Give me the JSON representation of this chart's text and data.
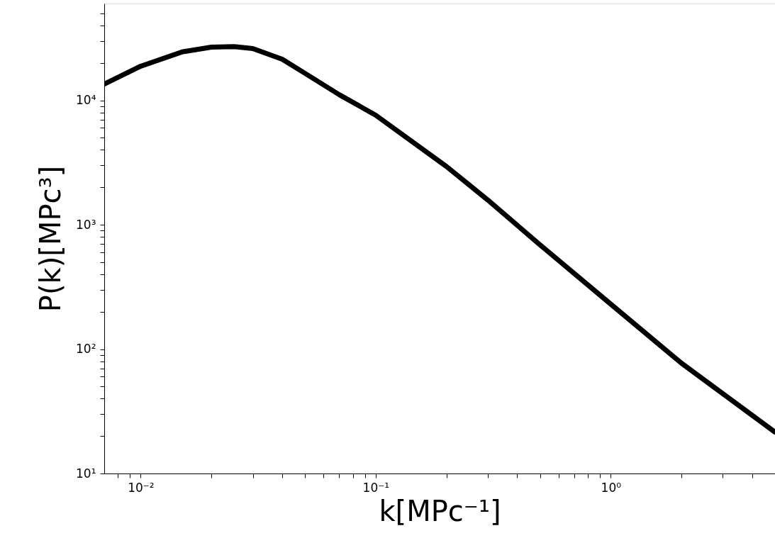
{
  "chart_data": {
    "type": "line",
    "xlabel": "k[MPc⁻¹]",
    "ylabel": "P(k)[MPc³]",
    "log": "xy",
    "grid": false,
    "line_style": "solid",
    "marker": "none",
    "x": [
      0.007,
      0.01,
      0.015,
      0.02,
      0.025,
      0.03,
      0.04,
      0.05,
      0.07,
      0.1,
      0.2,
      0.3,
      0.5,
      1,
      2,
      5
    ],
    "series": [
      {
        "color": "#000000",
        "values": [
          13500,
          18800,
          24500,
          26800,
          27000,
          26100,
          21400,
          16500,
          11100,
          7600,
          2940,
          1580,
          690,
          230,
          77,
          21.5
        ]
      }
    ],
    "xlim": [
      0.007,
      5
    ],
    "xticks": [
      {
        "value": 0.008,
        "label": null
      },
      {
        "value": 0.009,
        "label": null
      },
      {
        "value": 0.01,
        "label": "10⁻²"
      },
      {
        "value": 0.02,
        "label": null
      },
      {
        "value": 0.03,
        "label": null
      },
      {
        "value": 0.04,
        "label": null
      },
      {
        "value": 0.05,
        "label": null
      },
      {
        "value": 0.06,
        "label": null
      },
      {
        "value": 0.07,
        "label": null
      },
      {
        "value": 0.08,
        "label": null
      },
      {
        "value": 0.09,
        "label": null
      },
      {
        "value": 0.1,
        "label": "10⁻¹"
      },
      {
        "value": 0.2,
        "label": null
      },
      {
        "value": 0.3,
        "label": null
      },
      {
        "value": 0.4,
        "label": null
      },
      {
        "value": 0.5,
        "label": null
      },
      {
        "value": 0.6,
        "label": null
      },
      {
        "value": 0.7,
        "label": null
      },
      {
        "value": 0.8,
        "label": null
      },
      {
        "value": 0.9,
        "label": null
      },
      {
        "value": 1,
        "label": "10⁰"
      },
      {
        "value": 2,
        "label": null
      },
      {
        "value": 3,
        "label": null
      },
      {
        "value": 4,
        "label": null
      }
    ],
    "ylim": [
      10,
      60000
    ],
    "yticks": [
      {
        "value": 10,
        "label": "10¹"
      },
      {
        "value": 20,
        "label": null
      },
      {
        "value": 30,
        "label": null
      },
      {
        "value": 40,
        "label": null
      },
      {
        "value": 50,
        "label": null
      },
      {
        "value": 60,
        "label": null
      },
      {
        "value": 70,
        "label": null
      },
      {
        "value": 80,
        "label": null
      },
      {
        "value": 90,
        "label": null
      },
      {
        "value": 100,
        "label": "10²"
      },
      {
        "value": 200,
        "label": null
      },
      {
        "value": 300,
        "label": null
      },
      {
        "value": 400,
        "label": null
      },
      {
        "value": 500,
        "label": null
      },
      {
        "value": 600,
        "label": null
      },
      {
        "value": 700,
        "label": null
      },
      {
        "value": 800,
        "label": null
      },
      {
        "value": 900,
        "label": null
      },
      {
        "value": 1000,
        "label": "10³"
      },
      {
        "value": 2000,
        "label": null
      },
      {
        "value": 3000,
        "label": null
      },
      {
        "value": 4000,
        "label": null
      },
      {
        "value": 5000,
        "label": null
      },
      {
        "value": 6000,
        "label": null
      },
      {
        "value": 7000,
        "label": null
      },
      {
        "value": 8000,
        "label": null
      },
      {
        "value": 9000,
        "label": null
      },
      {
        "value": 10000,
        "label": "10⁴"
      },
      {
        "value": 20000,
        "label": null
      },
      {
        "value": 30000,
        "label": null
      },
      {
        "value": 40000,
        "label": null
      },
      {
        "value": 50000,
        "label": null
      }
    ]
  }
}
